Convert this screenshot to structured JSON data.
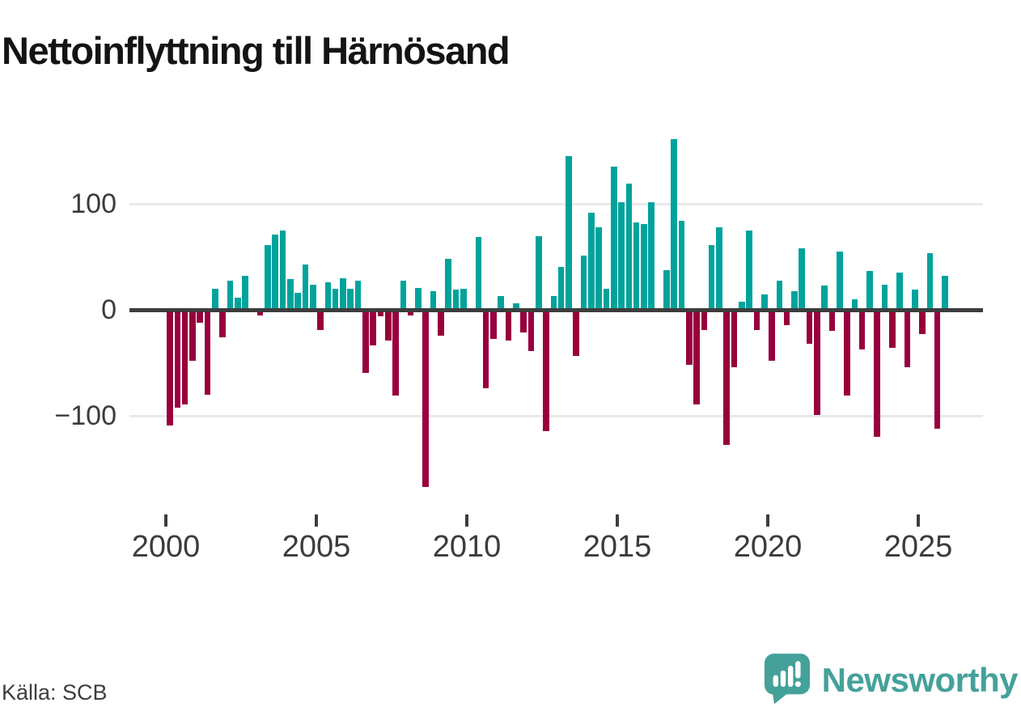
{
  "title": "Nettoinflyttning till Härnösand",
  "footer": {
    "source": "Källa: SCB"
  },
  "branding": {
    "name": "Newsworthy",
    "icon": "newsworthy-speech-bubble-barchart-icon"
  },
  "colors": {
    "positive": "#00a39b",
    "negative": "#98003d",
    "axis": "#3d3d3d",
    "gridline": "#e9e9e9",
    "brand": "#44a19a",
    "label": "#3b3b3b"
  },
  "chart_data": {
    "type": "bar",
    "title": "Nettoinflyttning till Härnösand",
    "frequency": "quarterly",
    "xlabel": "",
    "ylabel": "",
    "ylim": [
      -175,
      175
    ],
    "grid": "horizontal",
    "legend": false,
    "y_ticks": [
      "100",
      "0",
      "−100"
    ],
    "x_ticks": [
      "2000",
      "2005",
      "2010",
      "2015",
      "2020",
      "2025"
    ],
    "categories": [
      "2000 Q1",
      "2000 Q2",
      "2000 Q3",
      "2000 Q4",
      "2001 Q1",
      "2001 Q2",
      "2001 Q3",
      "2001 Q4",
      "2002 Q1",
      "2002 Q2",
      "2002 Q3",
      "2002 Q4",
      "2003 Q1",
      "2003 Q2",
      "2003 Q3",
      "2003 Q4",
      "2004 Q1",
      "2004 Q2",
      "2004 Q3",
      "2004 Q4",
      "2005 Q1",
      "2005 Q2",
      "2005 Q3",
      "2005 Q4",
      "2006 Q1",
      "2006 Q2",
      "2006 Q3",
      "2006 Q4",
      "2007 Q1",
      "2007 Q2",
      "2007 Q3",
      "2007 Q4",
      "2008 Q1",
      "2008 Q2",
      "2008 Q3",
      "2008 Q4",
      "2009 Q1",
      "2009 Q2",
      "2009 Q3",
      "2009 Q4",
      "2010 Q1",
      "2010 Q2",
      "2010 Q3",
      "2010 Q4",
      "2011 Q1",
      "2011 Q2",
      "2011 Q3",
      "2011 Q4",
      "2012 Q1",
      "2012 Q2",
      "2012 Q3",
      "2012 Q4",
      "2013 Q1",
      "2013 Q2",
      "2013 Q3",
      "2013 Q4",
      "2014 Q1",
      "2014 Q2",
      "2014 Q3",
      "2014 Q4",
      "2015 Q1",
      "2015 Q2",
      "2015 Q3",
      "2015 Q4",
      "2016 Q1",
      "2016 Q2",
      "2016 Q3",
      "2016 Q4",
      "2017 Q1",
      "2017 Q2",
      "2017 Q3",
      "2017 Q4",
      "2018 Q1",
      "2018 Q2",
      "2018 Q3",
      "2018 Q4",
      "2019 Q1",
      "2019 Q2",
      "2019 Q3",
      "2019 Q4",
      "2020 Q1",
      "2020 Q2",
      "2020 Q3",
      "2020 Q4",
      "2021 Q1",
      "2021 Q2",
      "2021 Q3",
      "2021 Q4",
      "2022 Q1",
      "2022 Q2",
      "2022 Q3",
      "2022 Q4",
      "2023 Q1",
      "2023 Q2",
      "2023 Q3",
      "2023 Q4",
      "2024 Q1",
      "2024 Q2",
      "2024 Q3",
      "2024 Q4",
      "2025 Q1",
      "2025 Q2",
      "2025 Q3",
      "2025 Q4"
    ],
    "values": [
      -109,
      -92,
      -89,
      -48,
      -12,
      -80,
      20,
      -26,
      28,
      12,
      32,
      0,
      -5,
      61,
      71,
      75,
      29,
      16,
      43,
      24,
      -19,
      26,
      20,
      30,
      20,
      28,
      -59,
      -33,
      -6,
      -29,
      -81,
      28,
      -5,
      21,
      -167,
      18,
      -24,
      48,
      19,
      20,
      0,
      69,
      -74,
      -27,
      13,
      -29,
      6,
      -21,
      -39,
      70,
      -114,
      13,
      41,
      145,
      -43,
      51,
      92,
      78,
      20,
      135,
      102,
      119,
      83,
      81,
      102,
      0,
      38,
      161,
      84,
      -52,
      -89,
      -19,
      61,
      78,
      -127,
      -54,
      8,
      75,
      -19,
      15,
      -48,
      28,
      -14,
      18,
      58,
      -32,
      -99,
      23,
      -20,
      55,
      -81,
      10,
      -37,
      37,
      -120,
      24,
      -36,
      35,
      -54,
      19,
      -23,
      54,
      -112,
      32
    ]
  }
}
